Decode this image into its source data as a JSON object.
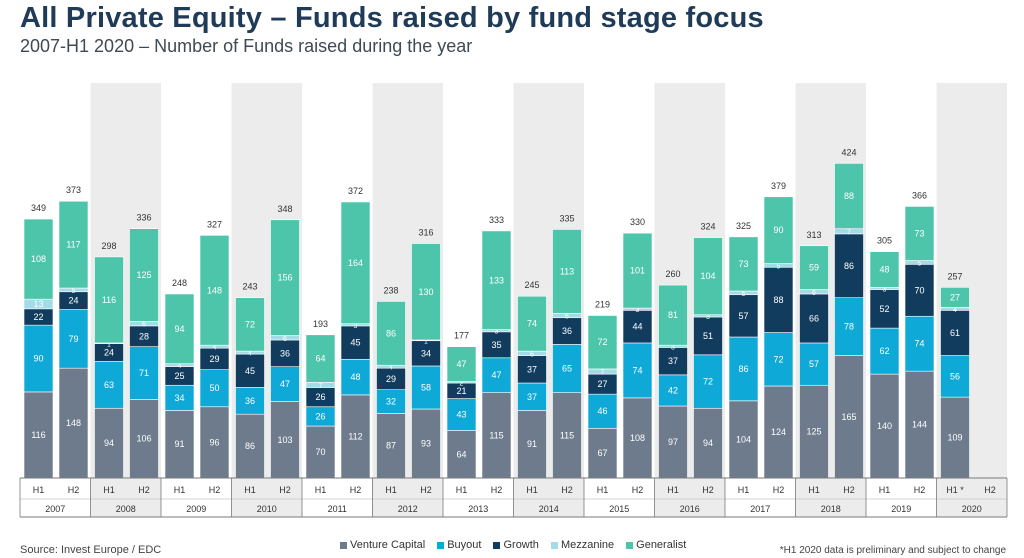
{
  "title": "All Private Equity – Funds raised by fund stage focus",
  "subtitle": "2007-H1 2020 – Number of Funds raised during the year",
  "source": "Source: Invest Europe / EDC",
  "footnote": "*H1 2020 data is preliminary and subject to change",
  "colors": {
    "venture_capital": "#6d7b8c",
    "buyout": "#0fa9d8",
    "growth": "#123c5e",
    "mezzanine": "#a3dbe7",
    "generalist": "#4dc5aa",
    "band": "#ececec",
    "axis": "#7a7a7a"
  },
  "legend": [
    {
      "label": "Venture Capital",
      "color_key": "venture_capital"
    },
    {
      "label": "Buyout",
      "color_key": "buyout"
    },
    {
      "label": "Growth",
      "color_key": "growth"
    },
    {
      "label": "Mezzanine",
      "color_key": "mezzanine"
    },
    {
      "label": "Generalist",
      "color_key": "generalist"
    }
  ],
  "chart_data": {
    "type": "bar",
    "stacked": true,
    "title": "All Private Equity – Funds raised by fund stage focus",
    "subtitle": "2007-H1 2020 – Number of Funds raised during the year",
    "years": [
      "2007",
      "2008",
      "2009",
      "2010",
      "2011",
      "2012",
      "2013",
      "2014",
      "2015",
      "2016",
      "2017",
      "2018",
      "2019",
      "2020"
    ],
    "categories": [
      "H1",
      "H2",
      "H1",
      "H2",
      "H1",
      "H2",
      "H1",
      "H2",
      "H1",
      "H2",
      "H1",
      "H2",
      "H1",
      "H2",
      "H1",
      "H2",
      "H1",
      "H2",
      "H1",
      "H2",
      "H1",
      "H2",
      "H1",
      "H2",
      "H1",
      "H2",
      "H1 *",
      "H2"
    ],
    "totals": [
      349,
      373,
      298,
      336,
      248,
      327,
      243,
      348,
      193,
      372,
      238,
      316,
      177,
      333,
      245,
      335,
      219,
      330,
      260,
      324,
      325,
      379,
      313,
      424,
      305,
      366,
      257,
      null
    ],
    "series": [
      {
        "name": "Venture Capital",
        "key": "venture_capital",
        "values": [
          116,
          148,
          94,
          106,
          91,
          96,
          86,
          103,
          70,
          112,
          87,
          93,
          64,
          115,
          91,
          115,
          67,
          108,
          97,
          94,
          104,
          124,
          125,
          165,
          140,
          144,
          109,
          null
        ]
      },
      {
        "name": "Buyout",
        "key": "buyout",
        "values": [
          90,
          79,
          63,
          71,
          34,
          50,
          36,
          47,
          26,
          48,
          32,
          58,
          43,
          47,
          37,
          65,
          46,
          74,
          42,
          72,
          86,
          72,
          57,
          78,
          62,
          74,
          56,
          null
        ]
      },
      {
        "name": "Growth",
        "key": "growth",
        "values": [
          22,
          24,
          24,
          28,
          25,
          29,
          45,
          36,
          26,
          45,
          29,
          34,
          21,
          35,
          37,
          36,
          27,
          44,
          37,
          51,
          57,
          88,
          66,
          86,
          52,
          70,
          61,
          null
        ]
      },
      {
        "name": "Mezzanine",
        "key": "mezzanine",
        "values": [
          13,
          5,
          1,
          6,
          4,
          4,
          4,
          6,
          7,
          3,
          4,
          1,
          2,
          3,
          6,
          6,
          7,
          3,
          3,
          3,
          5,
          5,
          6,
          7,
          3,
          5,
          4,
          null
        ]
      },
      {
        "name": "Generalist",
        "key": "generalist",
        "values": [
          108,
          117,
          116,
          125,
          94,
          148,
          72,
          156,
          64,
          164,
          86,
          130,
          47,
          133,
          74,
          113,
          72,
          101,
          81,
          104,
          73,
          90,
          59,
          88,
          48,
          73,
          27,
          null
        ]
      }
    ],
    "ylim": [
      0,
      450
    ],
    "xlabel": "",
    "ylabel": ""
  }
}
